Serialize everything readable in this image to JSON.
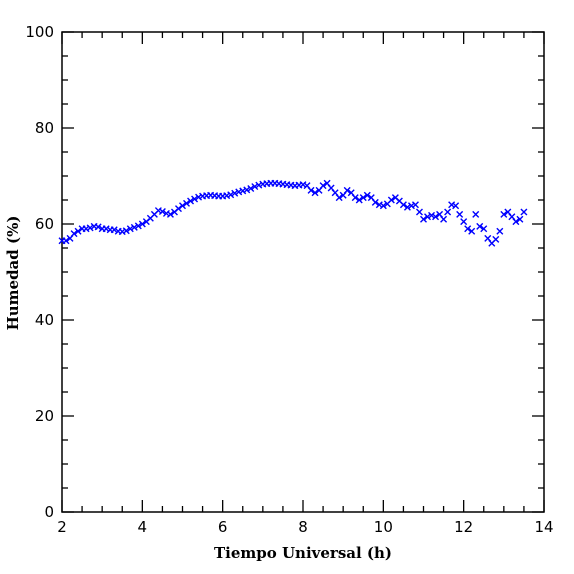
{
  "chart_data": {
    "type": "scatter",
    "title": "",
    "xlabel": "Tiempo Universal (h)",
    "ylabel": "Humedad (%)",
    "xlim": [
      2,
      14
    ],
    "ylim": [
      0,
      100
    ],
    "x_major_ticks": [
      2,
      4,
      6,
      8,
      10,
      12,
      14
    ],
    "y_major_ticks": [
      0,
      20,
      40,
      60,
      80,
      100
    ],
    "x_tick_labels": [
      "2",
      "4",
      "6",
      "8",
      "10",
      "12",
      "14"
    ],
    "y_tick_labels": [
      "0",
      "20",
      "40",
      "60",
      "80",
      "100"
    ],
    "grid": false,
    "marker": "x",
    "marker_color": "#0000ff",
    "series": [
      {
        "x": [
          2.0,
          2.1,
          2.2,
          2.3,
          2.4,
          2.5,
          2.6,
          2.7,
          2.8,
          2.9,
          3.0,
          3.1,
          3.2,
          3.3,
          3.4,
          3.5,
          3.6,
          3.7,
          3.8,
          3.9,
          4.0,
          4.1,
          4.2,
          4.3,
          4.4,
          4.5,
          4.6,
          4.7,
          4.8,
          4.9,
          5.0,
          5.1,
          5.2,
          5.3,
          5.4,
          5.5,
          5.6,
          5.7,
          5.8,
          5.9,
          6.0,
          6.1,
          6.2,
          6.3,
          6.4,
          6.5,
          6.6,
          6.7,
          6.8,
          6.9,
          7.0,
          7.1,
          7.2,
          7.3,
          7.4,
          7.5,
          7.6,
          7.7,
          7.8,
          7.9,
          8.0,
          8.1,
          8.2,
          8.3,
          8.4,
          8.5,
          8.6,
          8.7,
          8.8,
          8.9,
          9.0,
          9.1,
          9.2,
          9.3,
          9.4,
          9.5,
          9.6,
          9.7,
          9.8,
          9.9,
          10.0,
          10.1,
          10.2,
          10.3,
          10.4,
          10.5,
          10.6,
          10.7,
          10.8,
          10.9,
          11.0,
          11.1,
          11.2,
          11.3,
          11.4,
          11.5,
          11.6,
          11.7,
          11.8,
          11.9,
          12.0,
          12.1,
          12.2,
          12.3,
          12.4,
          12.5,
          12.6,
          12.7,
          12.8,
          12.9,
          13.0,
          13.1,
          13.2,
          13.3,
          13.4,
          13.5
        ],
        "y": [
          56.5,
          56.5,
          57.0,
          58.0,
          58.5,
          59.0,
          59.0,
          59.2,
          59.5,
          59.4,
          59.0,
          59.0,
          58.8,
          58.8,
          58.5,
          58.4,
          58.6,
          59.0,
          59.3,
          59.6,
          60.0,
          60.5,
          61.2,
          62.0,
          62.8,
          62.6,
          62.2,
          62.0,
          62.5,
          63.2,
          63.8,
          64.3,
          64.8,
          65.2,
          65.6,
          65.8,
          65.9,
          66.0,
          65.9,
          65.8,
          65.8,
          65.9,
          66.1,
          66.4,
          66.7,
          66.9,
          67.1,
          67.4,
          67.8,
          68.1,
          68.3,
          68.4,
          68.5,
          68.5,
          68.4,
          68.3,
          68.2,
          68.1,
          68.0,
          68.1,
          68.2,
          68.0,
          67.0,
          66.5,
          67.0,
          68.0,
          68.5,
          67.5,
          66.5,
          65.5,
          66.0,
          67.0,
          66.5,
          65.5,
          65.0,
          65.5,
          66.0,
          65.5,
          64.5,
          64.0,
          63.8,
          64.2,
          65.0,
          65.5,
          64.8,
          64.0,
          63.5,
          63.8,
          64.0,
          62.5,
          61.0,
          61.5,
          61.8,
          61.5,
          62.0,
          61.0,
          62.5,
          64.0,
          63.8,
          62.0,
          60.5,
          59.0,
          58.5,
          62.0,
          59.5,
          59.0,
          57.0,
          56.0,
          56.8,
          58.5,
          62.0,
          62.5,
          61.5,
          60.5,
          61.0,
          62.5
        ]
      }
    ]
  }
}
